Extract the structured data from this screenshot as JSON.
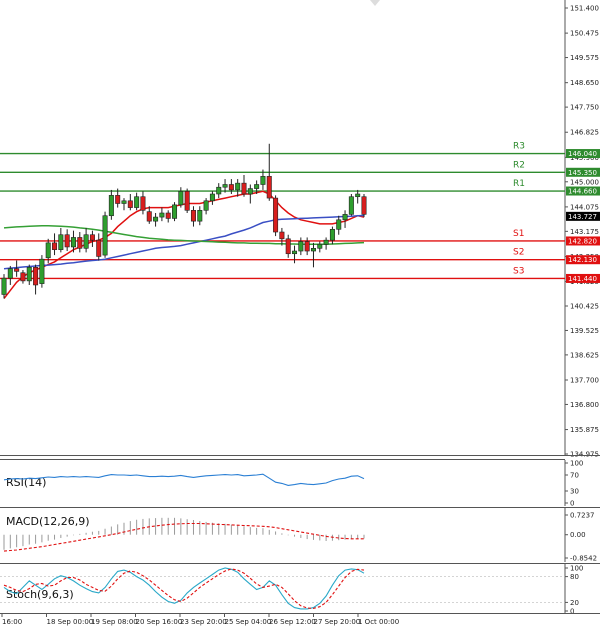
{
  "chart_data": {
    "type": "candlestick",
    "price_axis": {
      "ticks": [
        "151.400",
        "150.475",
        "149.575",
        "148.650",
        "147.750",
        "146.825",
        "145.900",
        "145.000",
        "144.075",
        "143.175",
        "142.250",
        "141.325",
        "140.425",
        "139.525",
        "138.625",
        "137.700",
        "136.800",
        "135.875",
        "134.975"
      ],
      "range": [
        134.975,
        151.4
      ]
    },
    "time_axis": {
      "labels": [
        "16:00",
        "18 Sep 00:00",
        "19 Sep 08:00",
        "20 Sep 16:00",
        "23 Sep 20:00",
        "25 Sep 04:00",
        "26 Sep 12:00",
        "27 Sep 20:00",
        "1 Oct 00:00"
      ]
    },
    "candles": [
      [
        140.85,
        141.6,
        140.7,
        141.45
      ],
      [
        141.45,
        141.9,
        141.2,
        141.8
      ],
      [
        141.8,
        142.1,
        141.5,
        141.7
      ],
      [
        141.65,
        141.75,
        141.25,
        141.35
      ],
      [
        141.35,
        141.95,
        141.2,
        141.85
      ],
      [
        141.85,
        141.95,
        140.85,
        141.2
      ],
      [
        141.25,
        142.3,
        141.1,
        142.15
      ],
      [
        142.2,
        142.9,
        142.0,
        142.75
      ],
      [
        142.75,
        143.1,
        142.3,
        142.5
      ],
      [
        142.5,
        143.3,
        142.4,
        143.05
      ],
      [
        143.05,
        143.25,
        142.45,
        142.6
      ],
      [
        142.6,
        143.2,
        142.4,
        142.95
      ],
      [
        142.95,
        143.15,
        142.4,
        142.55
      ],
      [
        142.55,
        143.3,
        142.4,
        143.05
      ],
      [
        143.05,
        143.2,
        142.6,
        142.85
      ],
      [
        142.85,
        143.1,
        142.1,
        142.25
      ],
      [
        142.3,
        143.9,
        142.2,
        143.75
      ],
      [
        143.75,
        144.7,
        143.6,
        144.5
      ],
      [
        144.5,
        144.75,
        144.05,
        144.2
      ],
      [
        144.2,
        144.4,
        143.95,
        144.3
      ],
      [
        144.3,
        144.55,
        143.95,
        144.05
      ],
      [
        144.05,
        144.6,
        143.95,
        144.45
      ],
      [
        144.45,
        144.65,
        143.8,
        143.95
      ],
      [
        143.9,
        144.1,
        143.45,
        143.55
      ],
      [
        143.55,
        143.85,
        143.35,
        143.7
      ],
      [
        143.7,
        144.05,
        143.55,
        143.85
      ],
      [
        143.85,
        143.95,
        143.5,
        143.65
      ],
      [
        143.65,
        144.25,
        143.55,
        144.15
      ],
      [
        144.15,
        144.8,
        144.05,
        144.65
      ],
      [
        144.65,
        144.75,
        143.85,
        143.95
      ],
      [
        143.95,
        144.1,
        143.35,
        143.55
      ],
      [
        143.55,
        144.1,
        143.4,
        143.95
      ],
      [
        143.95,
        144.4,
        143.8,
        144.3
      ],
      [
        144.3,
        144.65,
        144.15,
        144.55
      ],
      [
        144.55,
        144.95,
        144.4,
        144.8
      ],
      [
        144.8,
        145.1,
        144.6,
        144.9
      ],
      [
        144.9,
        145.1,
        144.55,
        144.7
      ],
      [
        144.7,
        145.1,
        144.45,
        144.95
      ],
      [
        144.95,
        145.25,
        144.45,
        144.55
      ],
      [
        144.55,
        144.9,
        144.2,
        144.75
      ],
      [
        144.75,
        145.05,
        144.55,
        144.9
      ],
      [
        144.9,
        145.45,
        144.7,
        145.2
      ],
      [
        145.2,
        146.4,
        144.3,
        144.4
      ],
      [
        144.4,
        144.5,
        143.0,
        143.15
      ],
      [
        143.15,
        143.3,
        142.65,
        142.9
      ],
      [
        142.9,
        143.05,
        142.2,
        142.35
      ],
      [
        142.35,
        142.65,
        142.0,
        142.45
      ],
      [
        142.45,
        142.95,
        142.3,
        142.8
      ],
      [
        142.8,
        142.95,
        142.3,
        142.45
      ],
      [
        142.45,
        142.75,
        141.85,
        142.55
      ],
      [
        142.55,
        142.8,
        142.4,
        142.7
      ],
      [
        142.7,
        142.95,
        142.5,
        142.85
      ],
      [
        142.85,
        143.35,
        142.7,
        143.25
      ],
      [
        143.25,
        143.75,
        143.05,
        143.6
      ],
      [
        143.6,
        143.95,
        143.3,
        143.8
      ],
      [
        143.8,
        144.55,
        143.75,
        144.45
      ],
      [
        144.45,
        144.7,
        144.2,
        144.55
      ],
      [
        144.45,
        144.55,
        143.7,
        143.8
      ]
    ],
    "series": [
      {
        "name": "",
        "color": "#e01010",
        "values": [
          140.7,
          141.0,
          141.3,
          141.5,
          141.65,
          141.75,
          141.85,
          141.95,
          142.05,
          142.2,
          142.35,
          142.5,
          142.6,
          142.7,
          142.8,
          142.85,
          142.95,
          143.1,
          143.35,
          143.55,
          143.75,
          143.9,
          144.0,
          144.05,
          144.05,
          144.05,
          144.05,
          144.1,
          144.15,
          144.2,
          144.2,
          144.2,
          144.25,
          144.3,
          144.35,
          144.4,
          144.45,
          144.5,
          144.55,
          144.55,
          144.6,
          144.65,
          144.55,
          144.3,
          144.05,
          143.85,
          143.7,
          143.6,
          143.55,
          143.5,
          143.45,
          143.45,
          143.45,
          143.5,
          143.55,
          143.65,
          143.75,
          143.7
        ]
      },
      {
        "name": "",
        "color": "#3a4fc4",
        "values": [
          141.8,
          141.82,
          141.84,
          141.86,
          141.88,
          141.9,
          141.92,
          141.93,
          141.95,
          141.97,
          142.0,
          142.02,
          142.05,
          142.08,
          142.1,
          142.12,
          142.15,
          142.2,
          142.25,
          142.3,
          142.35,
          142.4,
          142.45,
          142.5,
          142.55,
          142.58,
          142.6,
          142.62,
          142.65,
          142.7,
          142.75,
          142.8,
          142.85,
          142.9,
          142.95,
          143.0,
          143.08,
          143.15,
          143.22,
          143.3,
          143.4,
          143.5,
          143.55,
          143.6,
          143.62,
          143.63,
          143.64,
          143.65,
          143.66,
          143.67,
          143.68,
          143.69,
          143.7,
          143.71,
          143.72,
          143.73,
          143.75,
          143.76
        ]
      },
      {
        "name": "",
        "color": "#35a035",
        "values": [
          143.3,
          143.32,
          143.34,
          143.35,
          143.36,
          143.37,
          143.38,
          143.38,
          143.37,
          143.36,
          143.35,
          143.33,
          143.3,
          143.28,
          143.25,
          143.22,
          143.18,
          143.14,
          143.1,
          143.06,
          143.02,
          142.98,
          142.95,
          142.92,
          142.9,
          142.88,
          142.86,
          142.85,
          142.84,
          142.83,
          142.82,
          142.81,
          142.8,
          142.79,
          142.78,
          142.77,
          142.76,
          142.75,
          142.75,
          142.74,
          142.74,
          142.73,
          142.73,
          142.72,
          142.72,
          142.71,
          142.71,
          142.7,
          142.7,
          142.7,
          142.7,
          142.7,
          142.71,
          142.72,
          142.73,
          142.74,
          142.75,
          142.76
        ]
      }
    ],
    "levels": [
      {
        "name": "R3",
        "value": "146.040",
        "color": "#2e8b2e"
      },
      {
        "name": "R2",
        "value": "145.350",
        "color": "#2e8b2e"
      },
      {
        "name": "R1",
        "value": "144.660",
        "color": "#2e8b2e"
      },
      {
        "name": "S1",
        "value": "142.820",
        "color": "#e01010"
      },
      {
        "name": "S2",
        "value": "142.130",
        "color": "#e01010"
      },
      {
        "name": "S3",
        "value": "141.440",
        "color": "#e01010"
      }
    ],
    "current_price": "143.727",
    "indicators": {
      "rsi": {
        "title": "RSI(14)",
        "ticks": [
          "100",
          "70",
          "30",
          "0"
        ],
        "values": [
          58,
          60,
          61,
          60,
          62,
          61,
          63,
          65,
          64,
          66,
          65,
          66,
          65,
          66,
          65,
          64,
          68,
          71,
          70,
          70,
          69,
          70,
          68,
          66,
          66,
          67,
          66,
          67,
          69,
          66,
          64,
          66,
          68,
          69,
          70,
          71,
          70,
          71,
          68,
          69,
          70,
          72,
          62,
          52,
          49,
          44,
          46,
          49,
          47,
          46,
          48,
          50,
          56,
          60,
          62,
          67,
          68,
          61
        ]
      },
      "macd": {
        "title": "MACD(12,26,9)",
        "ticks": [
          "0.7237",
          "0.00",
          "-0.8542"
        ],
        "histogram": [
          -0.55,
          -0.5,
          -0.46,
          -0.42,
          -0.36,
          -0.33,
          -0.28,
          -0.22,
          -0.18,
          -0.12,
          -0.07,
          -0.02,
          0.03,
          0.07,
          0.11,
          0.14,
          0.22,
          0.3,
          0.38,
          0.44,
          0.5,
          0.55,
          0.58,
          0.6,
          0.61,
          0.62,
          0.62,
          0.62,
          0.6,
          0.57,
          0.54,
          0.5,
          0.47,
          0.44,
          0.42,
          0.4,
          0.37,
          0.34,
          0.31,
          0.28,
          0.25,
          0.24,
          0.18,
          0.12,
          0.05,
          -0.02,
          -0.07,
          -0.12,
          -0.16,
          -0.19,
          -0.21,
          -0.23,
          -0.22,
          -0.2,
          -0.18,
          -0.16,
          -0.15,
          -0.14
        ],
        "signal": [
          -0.6,
          -0.58,
          -0.56,
          -0.53,
          -0.5,
          -0.47,
          -0.44,
          -0.4,
          -0.36,
          -0.32,
          -0.28,
          -0.24,
          -0.2,
          -0.16,
          -0.12,
          -0.08,
          -0.04,
          0.0,
          0.05,
          0.1,
          0.15,
          0.2,
          0.25,
          0.29,
          0.32,
          0.35,
          0.37,
          0.39,
          0.4,
          0.41,
          0.41,
          0.41,
          0.4,
          0.39,
          0.38,
          0.37,
          0.36,
          0.35,
          0.34,
          0.33,
          0.32,
          0.31,
          0.29,
          0.26,
          0.22,
          0.18,
          0.14,
          0.1,
          0.06,
          0.02,
          -0.02,
          -0.06,
          -0.09,
          -0.12,
          -0.14,
          -0.15,
          -0.15,
          -0.15
        ]
      },
      "stoch": {
        "title": "Stoch(9,6,3)",
        "ticks": [
          "100",
          "80",
          "20",
          "0"
        ],
        "k": [
          55,
          45,
          40,
          55,
          70,
          60,
          50,
          62,
          75,
          82,
          78,
          70,
          60,
          52,
          45,
          42,
          55,
          75,
          92,
          95,
          90,
          80,
          72,
          60,
          45,
          32,
          22,
          18,
          25,
          42,
          55,
          65,
          75,
          85,
          95,
          100,
          97,
          90,
          75,
          62,
          50,
          55,
          70,
          60,
          38,
          18,
          8,
          5,
          5,
          8,
          18,
          35,
          60,
          82,
          95,
          98,
          96,
          88
        ],
        "d": [
          60,
          55,
          48,
          45,
          52,
          62,
          64,
          58,
          60,
          70,
          78,
          78,
          72,
          62,
          55,
          48,
          46,
          58,
          75,
          88,
          93,
          90,
          82,
          72,
          60,
          48,
          36,
          26,
          22,
          30,
          42,
          55,
          65,
          75,
          85,
          93,
          98,
          95,
          88,
          76,
          63,
          55,
          58,
          62,
          55,
          40,
          24,
          12,
          7,
          6,
          10,
          20,
          38,
          58,
          78,
          92,
          97,
          95
        ]
      }
    }
  }
}
